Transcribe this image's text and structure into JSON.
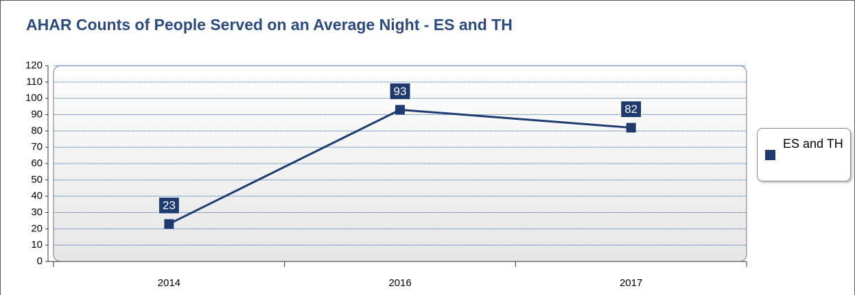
{
  "chart_data": {
    "type": "line",
    "title": "AHAR Counts of People Served on an Average Night - ES and TH",
    "categories": [
      "2014",
      "2016",
      "2017"
    ],
    "series": [
      {
        "name": "ES and TH",
        "color": "#1f3a6e",
        "values": [
          23,
          93,
          82
        ]
      }
    ],
    "ylim": [
      0,
      120
    ],
    "yticks": [
      0,
      10,
      20,
      30,
      40,
      50,
      60,
      70,
      80,
      90,
      100,
      110,
      120
    ],
    "grid": true,
    "legend": "right"
  }
}
